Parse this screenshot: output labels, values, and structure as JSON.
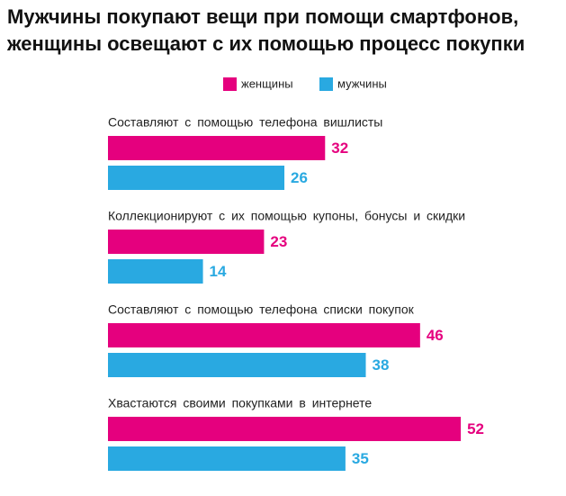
{
  "chart_data": {
    "type": "bar",
    "orientation": "horizontal",
    "title": [
      "Мужчины покупают вещи при помощи смартфонов,",
      "женщины освещают с их помощью процесс покупки"
    ],
    "categories": [
      "Составляют с помощью телефона вишлисты",
      "Коллекционируют с их помощью купоны, бонусы и скидки",
      "Составляют с помощью телефона списки покупок",
      "Хвастаются своими покупками в интернете"
    ],
    "series": [
      {
        "name": "женщины",
        "color": "#e5007e",
        "values": [
          32,
          23,
          46,
          52
        ]
      },
      {
        "name": "мужчины",
        "color": "#29a9e1",
        "values": [
          26,
          14,
          38,
          35
        ]
      }
    ],
    "show_values": true,
    "legend": "top"
  }
}
